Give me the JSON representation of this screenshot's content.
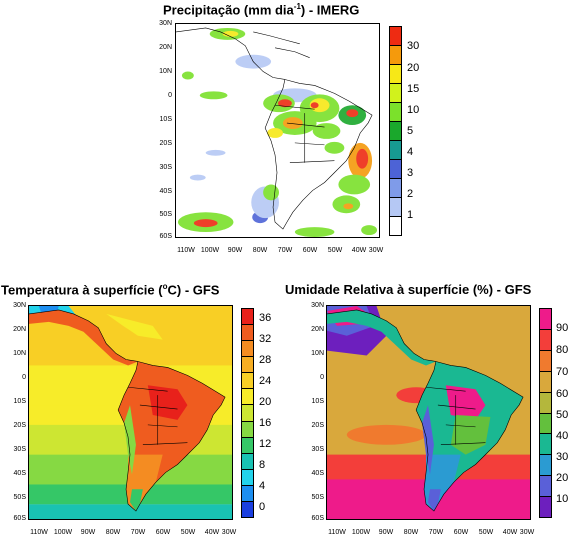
{
  "panels": {
    "precip": {
      "title_main": "Precipitação (mm dia",
      "title_exp": "-1",
      "title_tail": ") - IMERG",
      "lat_ticks": [
        "30N",
        "20N",
        "10N",
        "0",
        "10S",
        "20S",
        "30S",
        "40S",
        "50S",
        "60S"
      ],
      "lon_ticks": [
        "110W",
        "100W",
        "90W",
        "80W",
        "70W",
        "60W",
        "50W",
        "40W",
        "30W"
      ],
      "colorbar_labels": [
        "30",
        "20",
        "15",
        "10",
        "5",
        "4",
        "3",
        "2",
        "1"
      ],
      "colorbar_colors": [
        "#ee2b12",
        "#f59a0c",
        "#f7e817",
        "#d1f21c",
        "#7be12b",
        "#1aa82c",
        "#179a92",
        "#4d63d6",
        "#7f9be9",
        "#b5c8f4",
        "#ffffff"
      ]
    },
    "temp": {
      "title_main": "Temperatura à superfície (",
      "title_exp": "o",
      "title_tail": "C) - GFS",
      "lat_ticks": [
        "30N",
        "20N",
        "10N",
        "0",
        "10S",
        "20S",
        "30S",
        "40S",
        "50S",
        "60S"
      ],
      "lon_ticks": [
        "110W",
        "100W",
        "90W",
        "80W",
        "70W",
        "60W",
        "50W",
        "40W",
        "30W"
      ],
      "colorbar_labels": [
        "36",
        "32",
        "28",
        "24",
        "20",
        "16",
        "12",
        "8",
        "4",
        "0"
      ],
      "colorbar_colors": [
        "#e8211b",
        "#ef5c1f",
        "#f48c22",
        "#f7ae23",
        "#f8cf25",
        "#f7ec29",
        "#cde632",
        "#86d943",
        "#35c767",
        "#19c2b3",
        "#23d3eb",
        "#1d8ff1",
        "#1b3fe0"
      ]
    },
    "rh": {
      "title_main": "Umidade Relativa à superfície (%) - GFS",
      "lat_ticks": [
        "30N",
        "20N",
        "10N",
        "0",
        "10S",
        "20S",
        "30S",
        "40S",
        "50S",
        "60S"
      ],
      "lon_ticks": [
        "110W",
        "100W",
        "90W",
        "80W",
        "70W",
        "60W",
        "50W",
        "40W",
        "30W"
      ],
      "colorbar_labels": [
        "90",
        "80",
        "70",
        "60",
        "50",
        "40",
        "30",
        "20",
        "10"
      ],
      "colorbar_colors": [
        "#ee1b8a",
        "#f33e3a",
        "#f07a2e",
        "#d9a83c",
        "#b4b73c",
        "#63c03d",
        "#1ab892",
        "#2b9bd2",
        "#5a60d8",
        "#6d1fbe"
      ]
    }
  }
}
